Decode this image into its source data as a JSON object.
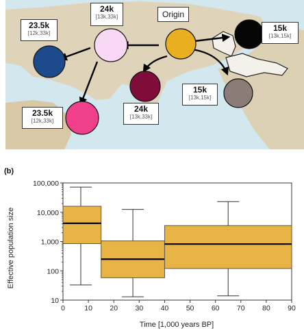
{
  "map": {
    "origin_label": "Origin",
    "nodes": [
      {
        "id": "origin",
        "value": "",
        "range": "",
        "color": "#e8b020"
      },
      {
        "id": "east-asia",
        "value": "24k",
        "range": "[13k,33k]",
        "color": "#f8d8f4"
      },
      {
        "id": "europe",
        "value": "23.5k",
        "range": "[12k,33k]",
        "color": "#1c4a8a"
      },
      {
        "id": "africa",
        "value": "23.5k",
        "range": "[12k,33k]",
        "color": "#f0408c"
      },
      {
        "id": "south-asia",
        "value": "24k",
        "range": "[13k,33k]",
        "color": "#800c3c"
      },
      {
        "id": "beringia",
        "value": "15k",
        "range": "[13k,15k]",
        "color": "#050505"
      },
      {
        "id": "north-america",
        "value": "15k",
        "range": "[13k,15k]",
        "color": "#8c7c78"
      }
    ]
  },
  "panel_b_tag": "(b)",
  "chart_data": {
    "type": "box",
    "xlabel": "Time [1,000 years BP]",
    "ylabel": "Effective population size",
    "xlim": [
      0,
      90
    ],
    "ylim": [
      10,
      100000
    ],
    "yscale": "log",
    "xticks": [
      0,
      10,
      20,
      30,
      40,
      50,
      60,
      70,
      80,
      90
    ],
    "yticks": [
      10,
      100,
      1000,
      10000,
      100000
    ],
    "ytick_labels": [
      "10",
      "100",
      "1,000",
      "10,000",
      "100,000"
    ],
    "box_color": "#e8b446",
    "boxes": [
      {
        "x_start": 0,
        "x_end": 15,
        "whisker_x": 7,
        "q1": 850,
        "median": 4200,
        "q3": 16000,
        "whisker_low": 33,
        "whisker_high": 72000
      },
      {
        "x_start": 15,
        "x_end": 40,
        "whisker_x": 27.5,
        "q1": 58,
        "median": 250,
        "q3": 1050,
        "whisker_low": 13,
        "whisker_high": 12500
      },
      {
        "x_start": 40,
        "x_end": 90,
        "whisker_x": 65,
        "q1": 120,
        "median": 820,
        "q3": 3500,
        "whisker_low": 14,
        "whisker_high": 23000
      }
    ]
  }
}
